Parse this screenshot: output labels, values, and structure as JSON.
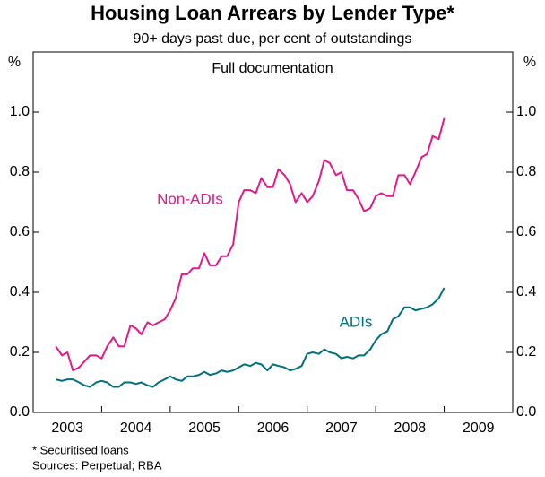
{
  "chart_data": {
    "type": "line",
    "title": "Housing Loan Arrears by Lender Type*",
    "subtitle": "90+ days past due, per cent of outstandings",
    "panel_title": "Full documentation",
    "y_unit": "%",
    "x": [
      2003.33,
      2003.42,
      2003.5,
      2003.58,
      2003.67,
      2003.75,
      2003.83,
      2003.92,
      2004.0,
      2004.08,
      2004.17,
      2004.25,
      2004.33,
      2004.42,
      2004.5,
      2004.58,
      2004.67,
      2004.75,
      2004.83,
      2004.92,
      2005.0,
      2005.08,
      2005.17,
      2005.25,
      2005.33,
      2005.42,
      2005.5,
      2005.58,
      2005.67,
      2005.75,
      2005.83,
      2005.92,
      2006.0,
      2006.08,
      2006.17,
      2006.25,
      2006.33,
      2006.42,
      2006.5,
      2006.58,
      2006.67,
      2006.75,
      2006.83,
      2006.92,
      2007.0,
      2007.08,
      2007.17,
      2007.25,
      2007.33,
      2007.42,
      2007.5,
      2007.58,
      2007.67,
      2007.75,
      2007.83,
      2007.92,
      2008.0,
      2008.08,
      2008.17,
      2008.25,
      2008.33,
      2008.42,
      2008.5,
      2008.58,
      2008.67,
      2008.75,
      2008.83,
      2008.92,
      2009.0
    ],
    "series": [
      {
        "name": "Non-ADIs",
        "color": "#e3188c",
        "values": [
          0.22,
          0.19,
          0.2,
          0.14,
          0.15,
          0.17,
          0.19,
          0.19,
          0.18,
          0.22,
          0.25,
          0.22,
          0.22,
          0.29,
          0.28,
          0.26,
          0.3,
          0.29,
          0.3,
          0.31,
          0.34,
          0.38,
          0.46,
          0.46,
          0.48,
          0.48,
          0.53,
          0.49,
          0.49,
          0.52,
          0.52,
          0.56,
          0.7,
          0.74,
          0.74,
          0.73,
          0.78,
          0.75,
          0.75,
          0.81,
          0.79,
          0.76,
          0.7,
          0.73,
          0.7,
          0.72,
          0.77,
          0.84,
          0.83,
          0.79,
          0.8,
          0.74,
          0.74,
          0.71,
          0.67,
          0.68,
          0.72,
          0.73,
          0.72,
          0.72,
          0.79,
          0.79,
          0.76,
          0.8,
          0.85,
          0.86,
          0.92,
          0.91,
          0.98
        ]
      },
      {
        "name": "ADIs",
        "color": "#00707f",
        "values": [
          0.11,
          0.105,
          0.11,
          0.11,
          0.1,
          0.09,
          0.085,
          0.1,
          0.105,
          0.1,
          0.085,
          0.085,
          0.1,
          0.1,
          0.095,
          0.1,
          0.09,
          0.085,
          0.1,
          0.11,
          0.12,
          0.11,
          0.105,
          0.12,
          0.12,
          0.125,
          0.135,
          0.125,
          0.13,
          0.14,
          0.135,
          0.14,
          0.15,
          0.16,
          0.155,
          0.165,
          0.16,
          0.14,
          0.16,
          0.155,
          0.15,
          0.14,
          0.145,
          0.155,
          0.195,
          0.2,
          0.195,
          0.21,
          0.2,
          0.195,
          0.18,
          0.185,
          0.18,
          0.19,
          0.19,
          0.21,
          0.24,
          0.26,
          0.27,
          0.31,
          0.32,
          0.35,
          0.35,
          0.34,
          0.345,
          0.35,
          0.36,
          0.38,
          0.415
        ]
      }
    ],
    "xlim": [
      2003,
      2010
    ],
    "xticks": [
      {
        "value": 2003.5,
        "label": "2003"
      },
      {
        "value": 2004.5,
        "label": "2004"
      },
      {
        "value": 2005.5,
        "label": "2005"
      },
      {
        "value": 2006.5,
        "label": "2006"
      },
      {
        "value": 2007.5,
        "label": "2007"
      },
      {
        "value": 2008.5,
        "label": "2008"
      },
      {
        "value": 2009.5,
        "label": "2009"
      }
    ],
    "x_tick_marks": [
      2004,
      2005,
      2006,
      2007,
      2008,
      2009
    ],
    "ylim": [
      0,
      1.2
    ],
    "yticks": [
      {
        "value": 0,
        "label": "0.0"
      },
      0.2,
      0.4,
      0.6,
      0.8,
      {
        "value": 1,
        "label": "1.0"
      }
    ],
    "footnotes": [
      "*   Securitised loans",
      "Sources: Perpetual; RBA"
    ]
  }
}
